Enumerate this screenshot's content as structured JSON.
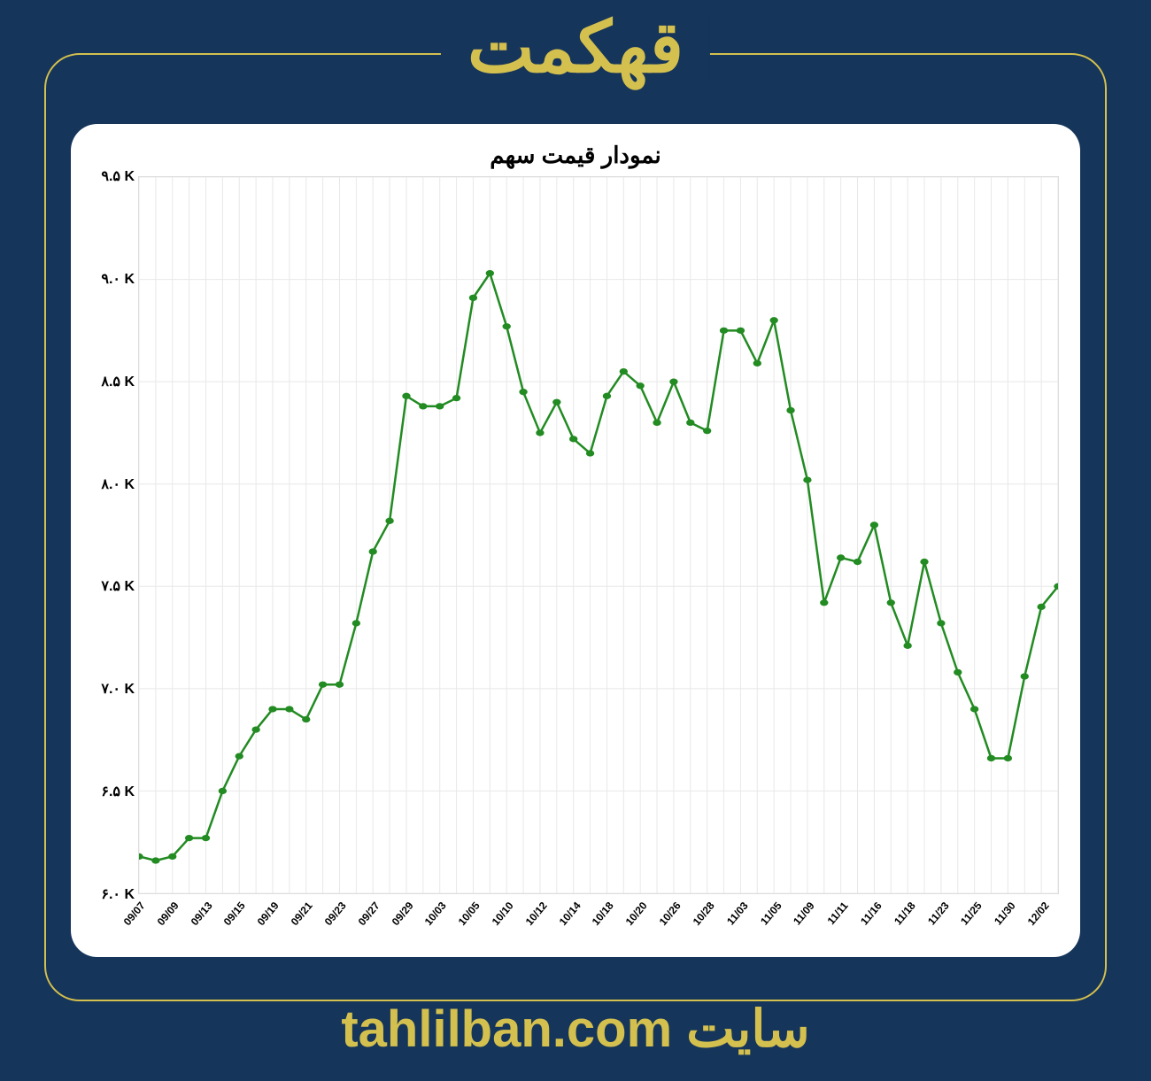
{
  "header": {
    "title": "قهکمت"
  },
  "footer": {
    "label": "سایت tahlilban.com"
  },
  "chart": {
    "type": "line",
    "title": "نمودار قیمت سهم",
    "background_color": "#ffffff",
    "page_background": "#16355a",
    "accent_color": "#d4c04e",
    "line_color": "#228b22",
    "line_width": 2.5,
    "marker_color": "#228b22",
    "marker_size": 5,
    "grid_color": "#e8e8e8",
    "border_color": "#dddddd",
    "title_fontsize": 26,
    "tick_fontsize": 16,
    "xlim": [
      0,
      53
    ],
    "ylim": [
      6000,
      9500
    ],
    "y_ticks": [
      {
        "value": 6000,
        "label": "۶.۰ K"
      },
      {
        "value": 6500,
        "label": "۶.۵ K"
      },
      {
        "value": 7000,
        "label": "۷.۰ K"
      },
      {
        "value": 7500,
        "label": "۷.۵ K"
      },
      {
        "value": 8000,
        "label": "۸.۰ K"
      },
      {
        "value": 8500,
        "label": "۸.۵ K"
      },
      {
        "value": 9000,
        "label": "۹.۰ K"
      },
      {
        "value": 9500,
        "label": "۹.۵ K"
      }
    ],
    "x_grid_every": 1,
    "x_ticks": [
      {
        "index": 0,
        "label": "09/07"
      },
      {
        "index": 2,
        "label": "09/09"
      },
      {
        "index": 4,
        "label": "09/13"
      },
      {
        "index": 6,
        "label": "09/15"
      },
      {
        "index": 8,
        "label": "09/19"
      },
      {
        "index": 10,
        "label": "09/21"
      },
      {
        "index": 12,
        "label": "09/23"
      },
      {
        "index": 14,
        "label": "09/27"
      },
      {
        "index": 16,
        "label": "09/29"
      },
      {
        "index": 18,
        "label": "10/03"
      },
      {
        "index": 20,
        "label": "10/05"
      },
      {
        "index": 22,
        "label": "10/10"
      },
      {
        "index": 24,
        "label": "10/12"
      },
      {
        "index": 26,
        "label": "10/14"
      },
      {
        "index": 28,
        "label": "10/18"
      },
      {
        "index": 30,
        "label": "10/20"
      },
      {
        "index": 32,
        "label": "10/26"
      },
      {
        "index": 34,
        "label": "10/28"
      },
      {
        "index": 36,
        "label": "11/03"
      },
      {
        "index": 38,
        "label": "11/05"
      },
      {
        "index": 40,
        "label": "11/09"
      },
      {
        "index": 42,
        "label": "11/11"
      },
      {
        "index": 44,
        "label": "11/16"
      },
      {
        "index": 46,
        "label": "11/18"
      },
      {
        "index": 48,
        "label": "11/23"
      },
      {
        "index": 50,
        "label": "11/25"
      },
      {
        "index": 52,
        "label": "11/30"
      },
      {
        "index": 54,
        "label": "12/02"
      }
    ],
    "series": [
      {
        "x": 0,
        "y": 6180
      },
      {
        "x": 1,
        "y": 6160
      },
      {
        "x": 2,
        "y": 6180
      },
      {
        "x": 3,
        "y": 6270
      },
      {
        "x": 4,
        "y": 6270
      },
      {
        "x": 5,
        "y": 6500
      },
      {
        "x": 6,
        "y": 6670
      },
      {
        "x": 7,
        "y": 6800
      },
      {
        "x": 8,
        "y": 6900
      },
      {
        "x": 9,
        "y": 6900
      },
      {
        "x": 10,
        "y": 6850
      },
      {
        "x": 11,
        "y": 7020
      },
      {
        "x": 12,
        "y": 7020
      },
      {
        "x": 13,
        "y": 7320
      },
      {
        "x": 14,
        "y": 7670
      },
      {
        "x": 15,
        "y": 7820
      },
      {
        "x": 16,
        "y": 8430
      },
      {
        "x": 17,
        "y": 8380
      },
      {
        "x": 18,
        "y": 8380
      },
      {
        "x": 19,
        "y": 8420
      },
      {
        "x": 20,
        "y": 8910
      },
      {
        "x": 21,
        "y": 9030
      },
      {
        "x": 22,
        "y": 8770
      },
      {
        "x": 23,
        "y": 8450
      },
      {
        "x": 24,
        "y": 8250
      },
      {
        "x": 25,
        "y": 8400
      },
      {
        "x": 26,
        "y": 8220
      },
      {
        "x": 27,
        "y": 8150
      },
      {
        "x": 28,
        "y": 8430
      },
      {
        "x": 29,
        "y": 8550
      },
      {
        "x": 30,
        "y": 8480
      },
      {
        "x": 31,
        "y": 8300
      },
      {
        "x": 32,
        "y": 8500
      },
      {
        "x": 33,
        "y": 8300
      },
      {
        "x": 34,
        "y": 8260
      },
      {
        "x": 35,
        "y": 8750
      },
      {
        "x": 36,
        "y": 8750
      },
      {
        "x": 37,
        "y": 8590
      },
      {
        "x": 38,
        "y": 8800
      },
      {
        "x": 39,
        "y": 8360
      },
      {
        "x": 40,
        "y": 8020
      },
      {
        "x": 41,
        "y": 7420
      },
      {
        "x": 42,
        "y": 7640
      },
      {
        "x": 43,
        "y": 7620
      },
      {
        "x": 44,
        "y": 7800
      },
      {
        "x": 45,
        "y": 7420
      },
      {
        "x": 46,
        "y": 7210
      },
      {
        "x": 47,
        "y": 7620
      },
      {
        "x": 48,
        "y": 7320
      },
      {
        "x": 49,
        "y": 7080
      },
      {
        "x": 50,
        "y": 6900
      },
      {
        "x": 51,
        "y": 6660
      },
      {
        "x": 52,
        "y": 6660
      },
      {
        "x": 53,
        "y": 7060
      },
      {
        "x": 54,
        "y": 7400
      },
      {
        "x": 55,
        "y": 7500
      }
    ]
  }
}
